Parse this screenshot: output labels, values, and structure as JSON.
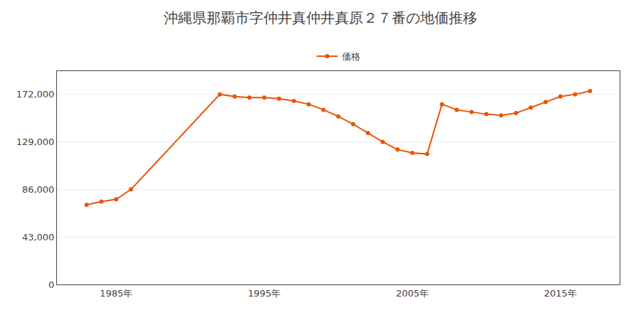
{
  "chart_data": {
    "type": "line",
    "title": "沖縄県那覇市字仲井真仲井真原２７番の地価推移",
    "x": [
      1983,
      1984,
      1985,
      1986,
      1992,
      1993,
      1994,
      1995,
      1996,
      1997,
      1998,
      1999,
      2000,
      2001,
      2002,
      2003,
      2004,
      2005,
      2006,
      2007,
      2008,
      2009,
      2010,
      2011,
      2012,
      2013,
      2014,
      2015,
      2016,
      2017
    ],
    "series": [
      {
        "name": "価格",
        "color": "#E8560A",
        "marker": "circle",
        "line_style": "solid",
        "values": [
          72000,
          75000,
          77000,
          86000,
          172000,
          170000,
          169000,
          169000,
          168000,
          166000,
          163000,
          158000,
          152000,
          145000,
          137000,
          129000,
          122000,
          119000,
          118000,
          163000,
          158000,
          156000,
          154000,
          153000,
          155000,
          160000,
          165000,
          170000,
          172000,
          175000
        ]
      }
    ],
    "xlim": [
      1981,
      2019
    ],
    "xticks": [
      {
        "value": 1985,
        "label": "1985年"
      },
      {
        "value": 1995,
        "label": "1995年"
      },
      {
        "value": 2005,
        "label": "2005年"
      },
      {
        "value": 2015,
        "label": "2015年"
      }
    ],
    "ylim": [
      0,
      193000
    ],
    "yticks": [
      0,
      {
        "value": 43000,
        "label": "43,000"
      },
      {
        "value": 86000,
        "label": "86,000"
      },
      {
        "value": 129000,
        "label": "129,000"
      },
      {
        "value": 172000,
        "label": "172,000"
      }
    ],
    "grid": "y",
    "legend": "top"
  }
}
